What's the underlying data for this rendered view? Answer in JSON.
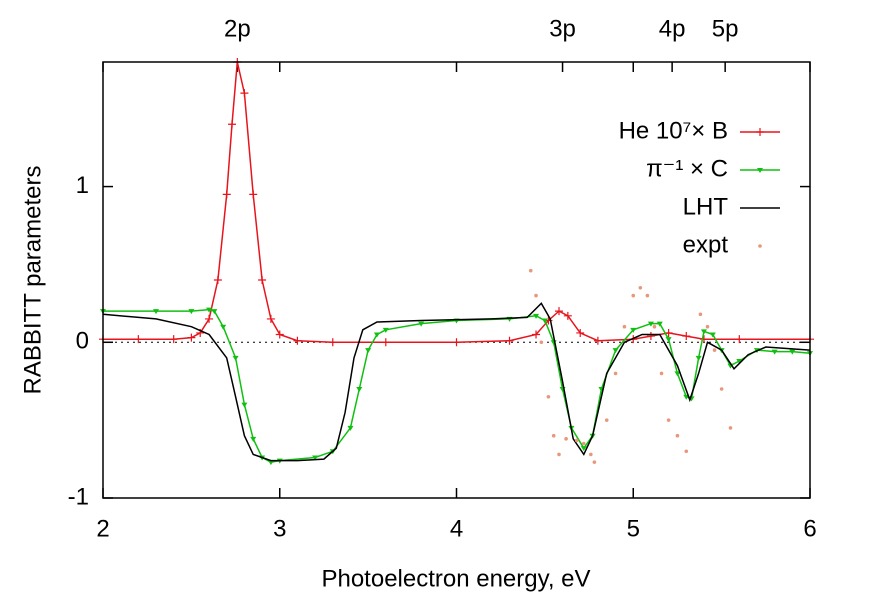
{
  "chart_data": {
    "type": "line",
    "xlabel": "Photoelectron energy, eV",
    "ylabel": "RABBITT parameters",
    "xlim": [
      2,
      6
    ],
    "ylim": [
      -1,
      1.8
    ],
    "xticks": [
      2,
      3,
      4,
      5,
      6
    ],
    "yticks": [
      -1,
      0,
      1
    ],
    "x2ticks": [
      {
        "value": 2.76,
        "label": "2p"
      },
      {
        "value": 4.6,
        "label": "3p"
      },
      {
        "value": 5.22,
        "label": "4p"
      },
      {
        "value": 5.52,
        "label": "5p"
      }
    ],
    "legend": "top-right",
    "series": [
      {
        "name": "He 10⁷× B",
        "color": "#e8141c",
        "line": true,
        "marker": "plus",
        "x": [
          2.0,
          2.2,
          2.4,
          2.5,
          2.55,
          2.6,
          2.65,
          2.7,
          2.73,
          2.76,
          2.8,
          2.85,
          2.9,
          2.95,
          3.0,
          3.1,
          3.3,
          3.6,
          4.0,
          4.3,
          4.45,
          4.52,
          4.58,
          4.63,
          4.7,
          4.8,
          5.0,
          5.1,
          5.2,
          5.3,
          5.4,
          5.6,
          6.0
        ],
        "values": [
          0.02,
          0.02,
          0.02,
          0.03,
          0.06,
          0.15,
          0.4,
          0.95,
          1.4,
          1.8,
          1.6,
          0.95,
          0.4,
          0.15,
          0.05,
          0.01,
          0.0,
          0.0,
          0.0,
          0.01,
          0.05,
          0.14,
          0.2,
          0.17,
          0.06,
          0.01,
          0.02,
          0.04,
          0.06,
          0.04,
          0.02,
          0.02,
          0.02
        ]
      },
      {
        "name": "π⁻¹ × C",
        "color": "#10c010",
        "line": true,
        "marker": "triangle",
        "x": [
          2.0,
          2.3,
          2.5,
          2.6,
          2.63,
          2.68,
          2.75,
          2.8,
          2.85,
          2.9,
          2.95,
          3.0,
          3.2,
          3.3,
          3.4,
          3.45,
          3.5,
          3.55,
          3.6,
          3.8,
          4.0,
          4.3,
          4.45,
          4.5,
          4.55,
          4.6,
          4.65,
          4.72,
          4.77,
          4.82,
          4.9,
          5.0,
          5.1,
          5.15,
          5.2,
          5.25,
          5.3,
          5.33,
          5.37,
          5.4,
          5.45,
          5.5,
          5.55,
          5.6,
          5.7,
          5.8,
          5.9,
          6.0
        ],
        "values": [
          0.2,
          0.2,
          0.2,
          0.21,
          0.2,
          0.1,
          -0.1,
          -0.4,
          -0.62,
          -0.74,
          -0.77,
          -0.76,
          -0.74,
          -0.7,
          -0.55,
          -0.3,
          -0.05,
          0.05,
          0.08,
          0.12,
          0.14,
          0.15,
          0.17,
          0.14,
          0.0,
          -0.3,
          -0.55,
          -0.68,
          -0.6,
          -0.3,
          -0.05,
          0.08,
          0.12,
          0.12,
          0.02,
          -0.2,
          -0.35,
          -0.36,
          -0.1,
          0.07,
          0.05,
          -0.05,
          -0.15,
          -0.12,
          -0.05,
          -0.06,
          -0.06,
          -0.07
        ]
      },
      {
        "name": "LHT",
        "color": "#000000",
        "line": true,
        "marker": "none",
        "x": [
          2.0,
          2.3,
          2.5,
          2.6,
          2.7,
          2.75,
          2.8,
          2.85,
          2.95,
          3.1,
          3.25,
          3.32,
          3.37,
          3.42,
          3.47,
          3.55,
          3.8,
          4.2,
          4.4,
          4.48,
          4.53,
          4.6,
          4.66,
          4.72,
          4.77,
          4.85,
          4.95,
          5.05,
          5.15,
          5.25,
          5.32,
          5.37,
          5.42,
          5.5,
          5.57,
          5.65,
          5.75,
          6.0
        ],
        "values": [
          0.18,
          0.15,
          0.1,
          0.05,
          -0.1,
          -0.35,
          -0.6,
          -0.72,
          -0.76,
          -0.76,
          -0.75,
          -0.68,
          -0.45,
          -0.1,
          0.08,
          0.13,
          0.14,
          0.15,
          0.16,
          0.25,
          0.15,
          -0.25,
          -0.62,
          -0.72,
          -0.6,
          -0.2,
          0.0,
          0.05,
          0.05,
          -0.15,
          -0.37,
          -0.2,
          0.0,
          -0.05,
          -0.17,
          -0.08,
          -0.03,
          -0.05
        ]
      },
      {
        "name": "expt",
        "color": "#e8987a",
        "line": false,
        "marker": "dot",
        "x": [
          4.42,
          4.45,
          4.48,
          4.52,
          4.55,
          4.58,
          4.62,
          4.68,
          4.72,
          4.76,
          4.78,
          4.85,
          4.9,
          4.95,
          5.0,
          5.04,
          5.08,
          5.12,
          5.16,
          5.2,
          5.25,
          5.3,
          5.38,
          5.42,
          5.46,
          5.5,
          5.55
        ],
        "values": [
          0.46,
          0.3,
          0.0,
          -0.35,
          -0.6,
          -0.72,
          -0.62,
          -0.63,
          -0.65,
          -0.72,
          -0.77,
          -0.5,
          -0.2,
          0.1,
          0.3,
          0.35,
          0.3,
          0.1,
          -0.2,
          -0.5,
          -0.6,
          -0.7,
          0.18,
          0.1,
          -0.05,
          -0.3,
          -0.55
        ]
      }
    ]
  }
}
